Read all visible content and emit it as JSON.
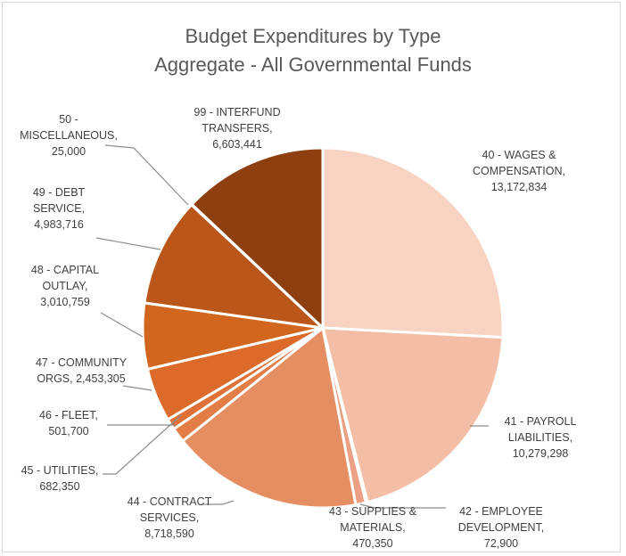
{
  "chart_data": {
    "type": "pie",
    "title": "Budget Expenditures by Type",
    "subtitle": "Aggregate - All Governmental Funds",
    "legend": "none",
    "slices": [
      {
        "code": "40",
        "name": "WAGES & COMPENSATION",
        "value": 13172834,
        "value_label": "13,172,834",
        "color": "#f8d3c2",
        "label_lines": [
          "40 - WAGES &",
          "COMPENSATION,",
          "13,172,834"
        ]
      },
      {
        "code": "41",
        "name": "PAYROLL LIABILITIES",
        "value": 10279298,
        "value_label": "10,279,298",
        "color": "#f3bea5",
        "label_lines": [
          "41 - PAYROLL",
          "LIABILITIES,",
          "10,279,298"
        ]
      },
      {
        "code": "42",
        "name": "EMPLOYEE DEVELOPMENT",
        "value": 72900,
        "value_label": "72,900",
        "color": "#efae92",
        "label_lines": [
          "42 - EMPLOYEE",
          "DEVELOPMENT,",
          "72,900"
        ]
      },
      {
        "code": "43",
        "name": "SUPPLIES & MATERIALS",
        "value": 470350,
        "value_label": "470,350",
        "color": "#eba083",
        "label_lines": [
          "43 - SUPPLIES &",
          "MATERIALS,",
          "470,350"
        ]
      },
      {
        "code": "44",
        "name": "CONTRACT SERVICES",
        "value": 8718590,
        "value_label": "8,718,590",
        "color": "#e58e62",
        "label_lines": [
          "44 - CONTRACT",
          "SERVICES,",
          "8,718,590"
        ]
      },
      {
        "code": "45",
        "name": "UTILITIES",
        "value": 682350,
        "value_label": "682,350",
        "color": "#e27d46",
        "label_lines": [
          "45 - UTILITIES,",
          "682,350"
        ]
      },
      {
        "code": "46",
        "name": "FLEET",
        "value": 501700,
        "value_label": "501,700",
        "color": "#df7136",
        "label_lines": [
          "46 - FLEET,",
          "501,700"
        ]
      },
      {
        "code": "47",
        "name": "COMMUNITY ORGS",
        "value": 2453305,
        "value_label": "2,453,305",
        "color": "#dc6a2a",
        "label_lines": [
          "47 - COMMUNITY",
          "ORGS,  2,453,305"
        ]
      },
      {
        "code": "48",
        "name": "CAPITAL OUTLAY",
        "value": 3010759,
        "value_label": "3,010,759",
        "color": "#d2661f",
        "label_lines": [
          "48 - CAPITAL",
          "OUTLAY,",
          "3,010,759"
        ]
      },
      {
        "code": "49",
        "name": "DEBT SERVICE",
        "value": 4983716,
        "value_label": "4,983,716",
        "color": "#bb561a",
        "label_lines": [
          "49 - DEBT",
          "SERVICE,",
          "4,983,716"
        ]
      },
      {
        "code": "50",
        "name": "MISCELLANEOUS",
        "value": 25000,
        "value_label": "25,000",
        "color": "#a14b16",
        "label_lines": [
          "50 -",
          "MISCELLANEOUS,",
          "25,000"
        ]
      },
      {
        "code": "99",
        "name": "INTERFUND TRANSFERS",
        "value": 6603441,
        "value_label": "6,603,441",
        "color": "#8e3f10",
        "label_lines": [
          "99 - INTERFUND",
          "TRANSFERS,",
          "6,603,441"
        ]
      }
    ]
  }
}
